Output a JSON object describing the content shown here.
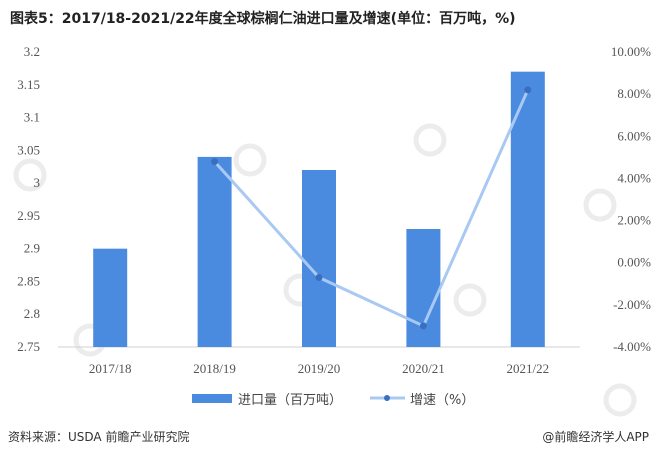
{
  "chart_data": {
    "type": "bar",
    "title": "图表5：2017/18-2021/22年度全球棕榈仁油进口量及增速(单位：百万吨，%)",
    "categories": [
      "2017/18",
      "2018/19",
      "2019/20",
      "2020/21",
      "2021/22"
    ],
    "series": [
      {
        "name": "进口量（百万吨）",
        "type": "bar",
        "axis": "left",
        "values": [
          2.9,
          3.04,
          3.02,
          2.93,
          3.17
        ],
        "color": "#4a8be0"
      },
      {
        "name": "增速（%）",
        "type": "line",
        "axis": "right",
        "values": [
          null,
          4.8,
          -0.7,
          -3.0,
          8.2
        ],
        "color": "#a9c9f3",
        "marker_color": "#3a6fc0"
      }
    ],
    "y_left": {
      "range": [
        2.75,
        3.2
      ],
      "ticks": [
        "2.75",
        "2.8",
        "2.85",
        "2.9",
        "2.95",
        "3",
        "3.05",
        "3.1",
        "3.15",
        "3.2"
      ]
    },
    "y_right": {
      "range": [
        -4,
        10
      ],
      "ticks": [
        "-4.00%",
        "-2.00%",
        "0.00%",
        "2.00%",
        "4.00%",
        "6.00%",
        "8.00%",
        "10.00%"
      ]
    },
    "legend_position": "bottom",
    "grid": false
  },
  "footer": {
    "source": "资料来源：USDA 前瞻产业研究院",
    "brand": "@前瞻经济学人APP"
  }
}
